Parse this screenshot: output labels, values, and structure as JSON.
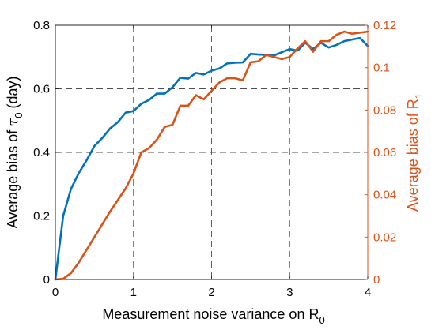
{
  "chart_data": {
    "type": "line",
    "x_axis": {
      "range": [
        0,
        4
      ],
      "ticks": [
        "0",
        "1",
        "2",
        "3",
        "4"
      ],
      "label": {
        "text": "Measurement noise variance on R",
        "subscript": "0"
      }
    },
    "y_axis_left": {
      "range": [
        0,
        0.8
      ],
      "ticks": [
        "0",
        "0.2",
        "0.4",
        "0.6",
        "0.8"
      ],
      "label": {
        "prefix": "Average bias of ",
        "symbol": "τ",
        "subscript": "0",
        "suffix": "  (day)"
      },
      "color": "#000000"
    },
    "y_axis_right": {
      "range": [
        0,
        0.12
      ],
      "ticks": [
        "0",
        "0.02",
        "0.04",
        "0.06",
        "0.08",
        "0.1",
        "0.12"
      ],
      "label": {
        "text": "Average bias of R",
        "subscript": "1"
      },
      "color": "#d95319"
    },
    "grid": true,
    "series": [
      {
        "axis": "left",
        "color": "#0072bd",
        "x": [
          0,
          0.1,
          0.2,
          0.3,
          0.4,
          0.5,
          0.6,
          0.7,
          0.8,
          0.9,
          1.0,
          1.1,
          1.2,
          1.3,
          1.4,
          1.5,
          1.6,
          1.7,
          1.8,
          1.9,
          2.0,
          2.1,
          2.2,
          2.3,
          2.4,
          2.5,
          2.6,
          2.7,
          2.8,
          2.9,
          3.0,
          3.1,
          3.2,
          3.3,
          3.4,
          3.5,
          3.6,
          3.7,
          3.8,
          3.9,
          4.0
        ],
        "y": [
          0.0,
          0.2,
          0.285,
          0.335,
          0.375,
          0.42,
          0.445,
          0.475,
          0.495,
          0.525,
          0.53,
          0.553,
          0.565,
          0.585,
          0.585,
          0.605,
          0.635,
          0.632,
          0.65,
          0.645,
          0.657,
          0.664,
          0.68,
          0.682,
          0.683,
          0.71,
          0.708,
          0.707,
          0.705,
          0.715,
          0.725,
          0.72,
          0.745,
          0.725,
          0.745,
          0.73,
          0.738,
          0.75,
          0.755,
          0.76,
          0.735
        ]
      },
      {
        "axis": "right",
        "color": "#d95319",
        "x": [
          0,
          0.1,
          0.2,
          0.3,
          0.4,
          0.5,
          0.6,
          0.7,
          0.8,
          0.9,
          1.0,
          1.1,
          1.2,
          1.3,
          1.4,
          1.5,
          1.6,
          1.7,
          1.8,
          1.9,
          2.0,
          2.1,
          2.2,
          2.3,
          2.4,
          2.5,
          2.6,
          2.7,
          2.8,
          2.9,
          3.0,
          3.1,
          3.2,
          3.3,
          3.4,
          3.5,
          3.6,
          3.7,
          3.8,
          3.9,
          4.0
        ],
        "y": [
          0.0,
          0.0003,
          0.003,
          0.008,
          0.014,
          0.02,
          0.026,
          0.032,
          0.0375,
          0.043,
          0.05,
          0.06,
          0.062,
          0.066,
          0.072,
          0.073,
          0.082,
          0.082,
          0.087,
          0.085,
          0.089,
          0.093,
          0.095,
          0.095,
          0.094,
          0.1025,
          0.103,
          0.106,
          0.105,
          0.104,
          0.105,
          0.109,
          0.1125,
          0.1075,
          0.1125,
          0.1125,
          0.1155,
          0.117,
          0.116,
          0.1165,
          0.117
        ]
      }
    ]
  }
}
